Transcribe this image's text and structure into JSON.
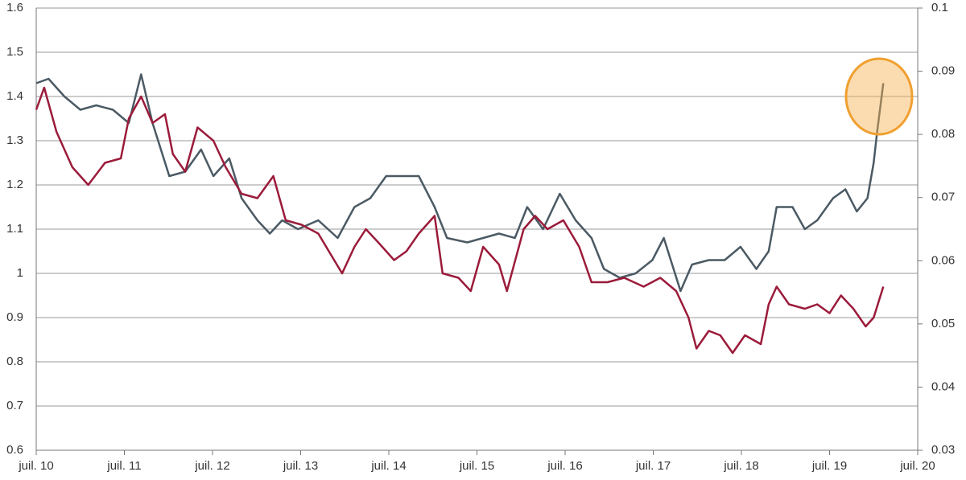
{
  "chart_data": {
    "type": "line",
    "xlim": [
      2010.5,
      2020.5
    ],
    "xticks": [
      {
        "value": 2010.5,
        "label": "juil. 10"
      },
      {
        "value": 2011.5,
        "label": "juil. 11"
      },
      {
        "value": 2012.5,
        "label": "juil. 12"
      },
      {
        "value": 2013.5,
        "label": "juil. 13"
      },
      {
        "value": 2014.5,
        "label": "juil. 14"
      },
      {
        "value": 2015.5,
        "label": "juil. 15"
      },
      {
        "value": 2016.5,
        "label": "juil. 16"
      },
      {
        "value": 2017.5,
        "label": "juil. 17"
      },
      {
        "value": 2018.5,
        "label": "juil. 18"
      },
      {
        "value": 2019.5,
        "label": "juil. 19"
      },
      {
        "value": 2020.5,
        "label": "juil. 20"
      }
    ],
    "ylim": [
      0.6,
      1.6
    ],
    "yticks": [
      0.6,
      0.7,
      0.8,
      0.9,
      1,
      1.1,
      1.2,
      1.3,
      1.4,
      1.5,
      1.6
    ],
    "y2lim": [
      0.03,
      0.1
    ],
    "y2ticks": [
      0.03,
      0.04,
      0.05,
      0.06,
      0.07,
      0.08,
      0.09,
      0.1
    ],
    "grid": true,
    "series": [
      {
        "color": "#4b5a64",
        "x": [
          2010.5,
          2010.64,
          2010.82,
          2011.0,
          2011.18,
          2011.37,
          2011.55,
          2011.69,
          2011.82,
          2012.01,
          2012.19,
          2012.37,
          2012.51,
          2012.69,
          2012.83,
          2013.01,
          2013.15,
          2013.29,
          2013.47,
          2013.7,
          2013.92,
          2014.11,
          2014.29,
          2014.47,
          2014.66,
          2014.84,
          2015.02,
          2015.16,
          2015.39,
          2015.57,
          2015.75,
          2015.93,
          2016.07,
          2016.25,
          2016.44,
          2016.62,
          2016.8,
          2016.94,
          2017.12,
          2017.3,
          2017.49,
          2017.62,
          2017.81,
          2017.94,
          2018.13,
          2018.31,
          2018.49,
          2018.67,
          2018.81,
          2018.9,
          2019.08,
          2019.22,
          2019.36,
          2019.54,
          2019.68,
          2019.81,
          2019.93,
          2020.0,
          2020.04,
          2020.11
        ],
        "values": [
          1.43,
          1.44,
          1.4,
          1.37,
          1.38,
          1.37,
          1.34,
          1.45,
          1.34,
          1.22,
          1.23,
          1.28,
          1.22,
          1.26,
          1.17,
          1.12,
          1.09,
          1.12,
          1.1,
          1.12,
          1.08,
          1.15,
          1.17,
          1.22,
          1.22,
          1.22,
          1.15,
          1.08,
          1.07,
          1.08,
          1.09,
          1.08,
          1.15,
          1.1,
          1.18,
          1.12,
          1.08,
          1.01,
          0.99,
          1.0,
          1.03,
          1.08,
          0.96,
          1.02,
          1.03,
          1.03,
          1.06,
          1.01,
          1.05,
          1.15,
          1.15,
          1.1,
          1.12,
          1.17,
          1.19,
          1.14,
          1.17,
          1.25,
          1.32,
          1.43
        ]
      },
      {
        "color": "#9b1b3a",
        "x": [
          2010.5,
          2010.59,
          2010.73,
          2010.91,
          2011.09,
          2011.28,
          2011.46,
          2011.55,
          2011.69,
          2011.82,
          2011.96,
          2012.05,
          2012.19,
          2012.33,
          2012.51,
          2012.65,
          2012.83,
          2013.01,
          2013.19,
          2013.33,
          2013.51,
          2013.7,
          2013.88,
          2013.97,
          2014.11,
          2014.24,
          2014.38,
          2014.56,
          2014.7,
          2014.84,
          2015.02,
          2015.11,
          2015.29,
          2015.43,
          2015.57,
          2015.75,
          2015.84,
          2016.03,
          2016.16,
          2016.3,
          2016.48,
          2016.66,
          2016.8,
          2016.98,
          2017.17,
          2017.39,
          2017.58,
          2017.76,
          2017.9,
          2017.99,
          2018.13,
          2018.26,
          2018.4,
          2018.54,
          2018.72,
          2018.81,
          2018.9,
          2019.04,
          2019.22,
          2019.36,
          2019.5,
          2019.63,
          2019.77,
          2019.91,
          2020.0,
          2020.11
        ],
        "values": [
          1.37,
          1.42,
          1.32,
          1.24,
          1.2,
          1.25,
          1.26,
          1.35,
          1.4,
          1.34,
          1.36,
          1.27,
          1.23,
          1.33,
          1.3,
          1.24,
          1.18,
          1.17,
          1.22,
          1.12,
          1.11,
          1.09,
          1.03,
          1.0,
          1.06,
          1.1,
          1.07,
          1.03,
          1.05,
          1.09,
          1.13,
          1.0,
          0.99,
          0.96,
          1.06,
          1.02,
          0.96,
          1.1,
          1.13,
          1.1,
          1.12,
          1.06,
          0.98,
          0.98,
          0.99,
          0.97,
          0.99,
          0.96,
          0.9,
          0.83,
          0.87,
          0.86,
          0.82,
          0.86,
          0.84,
          0.93,
          0.97,
          0.93,
          0.92,
          0.93,
          0.91,
          0.95,
          0.92,
          0.88,
          0.9,
          0.97
        ]
      }
    ]
  }
}
